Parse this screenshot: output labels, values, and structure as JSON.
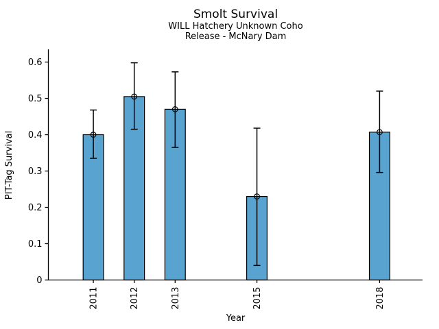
{
  "figure": {
    "title": "Smolt Survival",
    "subtitle_line1": "WILL Hatchery Unknown Coho",
    "subtitle_line2": "Release - McNary Dam"
  },
  "chart_data": {
    "type": "bar",
    "title": "Smolt Survival",
    "subtitle": [
      "WILL Hatchery Unknown Coho",
      "Release - McNary Dam"
    ],
    "xlabel": "Year",
    "ylabel": "PIT-Tag Survival",
    "categories": [
      "2011",
      "2012",
      "2013",
      "2015",
      "2018"
    ],
    "x": [
      2011,
      2012,
      2013,
      2015,
      2018
    ],
    "values": [
      0.4,
      0.505,
      0.47,
      0.23,
      0.407
    ],
    "error_low": [
      0.335,
      0.415,
      0.365,
      0.04,
      0.296
    ],
    "error_high": [
      0.468,
      0.598,
      0.573,
      0.418,
      0.52
    ],
    "bar_width_years": 0.5,
    "xlim": [
      2009.9,
      2019.05
    ],
    "ylim": [
      0,
      0.635
    ],
    "yticks": [
      0,
      0.1,
      0.2,
      0.3,
      0.4,
      0.5,
      0.6
    ],
    "ytick_labels": [
      "0",
      "0.1",
      "0.2",
      "0.3",
      "0.4",
      "0.5",
      "0.6"
    ],
    "xtick_rotation_deg": 90,
    "grid": false,
    "legend": "none",
    "marker": "open-circle",
    "colors": {
      "bar_fill": "#58A3CF",
      "bar_edge": "#000000",
      "error_bar": "#000000",
      "axis": "#000000",
      "text": "#000000",
      "background": "#FFFFFF"
    }
  }
}
